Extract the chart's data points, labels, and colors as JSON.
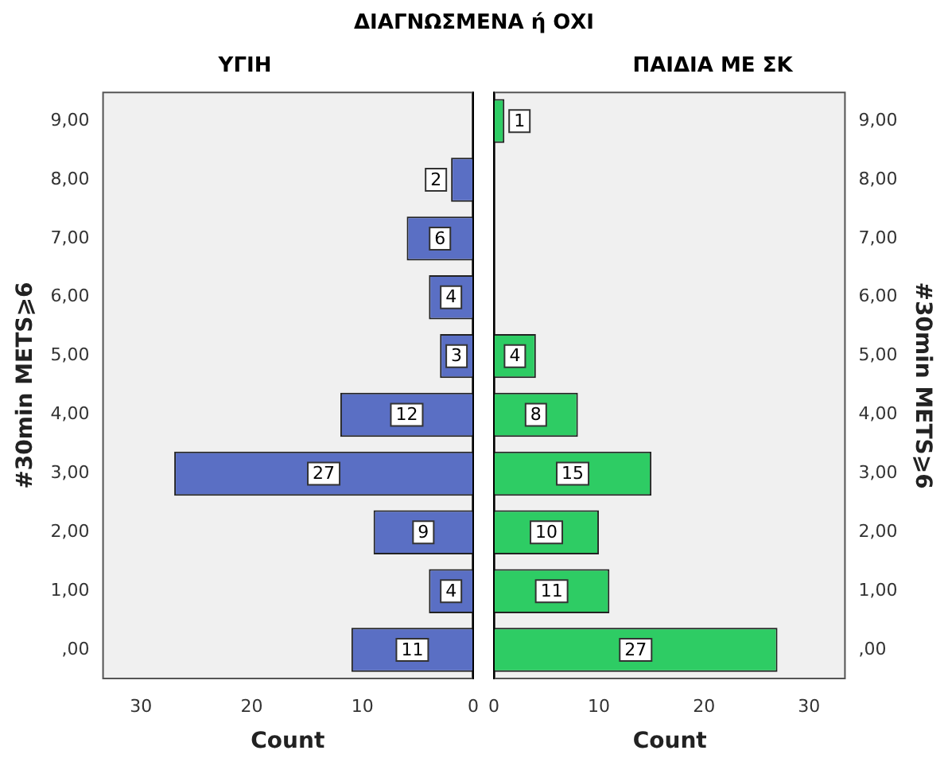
{
  "chart_data": [
    {
      "type": "bar",
      "title": "ΔΙΑΓΝΩΣΜΕΝΑ ή ΟΧΙ",
      "subtitle": "ΥΓΙΗ",
      "orientation": "horizontal",
      "categories": [
        "9,00",
        "8,00",
        "7,00",
        "6,00",
        "5,00",
        "4,00",
        "3,00",
        "2,00",
        "1,00",
        ",00"
      ],
      "values": [
        null,
        2,
        6,
        4,
        3,
        12,
        27,
        9,
        4,
        11
      ],
      "color": "#5a6fc4",
      "xlim": [
        33.5,
        0
      ],
      "xticks": [
        30,
        20,
        10,
        0
      ],
      "xlabel": "Count",
      "ylabel": "#30min METS⩾6",
      "data_labels": true
    },
    {
      "type": "bar",
      "subtitle": "ΠΑΙΔΙΑ ΜΕ ΣΚ",
      "orientation": "horizontal",
      "categories": [
        "9,00",
        "8,00",
        "7,00",
        "6,00",
        "5,00",
        "4,00",
        "3,00",
        "2,00",
        "1,00",
        ",00"
      ],
      "values": [
        1,
        null,
        null,
        null,
        4,
        8,
        15,
        10,
        11,
        27
      ],
      "color": "#2ecc64",
      "xlim": [
        0,
        33.5
      ],
      "xticks": [
        0,
        10,
        20,
        30
      ],
      "xlabel": "Count",
      "ylabel": "#30min METS⩾6",
      "data_labels": true
    }
  ]
}
